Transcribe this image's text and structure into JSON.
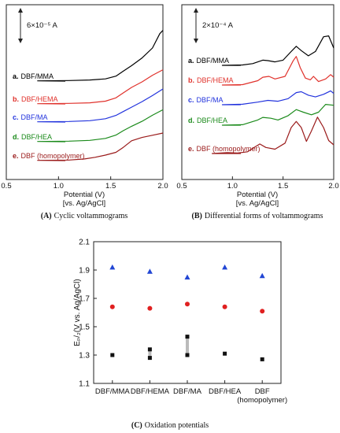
{
  "chart_data": [
    {
      "panel": "A",
      "type": "line",
      "caption_letter": "(A)",
      "caption_text": "Cyclic voltammograms",
      "scale_bar": "6×10⁻⁵ A",
      "xlabel": "Potential (V)",
      "xlabel_sub": "[vs. Ag/AgCl]",
      "xlim": [
        0.5,
        2.0
      ],
      "xticks": [
        "0.5",
        "1.0",
        "1.5",
        "2.0"
      ],
      "series": [
        {
          "letter": "a.",
          "name": "DBF/MMA",
          "color": "#000000",
          "x": [
            0.5,
            0.8,
            1.1,
            1.3,
            1.45,
            1.55,
            1.62,
            1.7,
            1.8,
            1.9,
            1.97,
            2.0
          ],
          "y": [
            0,
            0.02,
            0.05,
            0.1,
            0.2,
            0.45,
            0.9,
            1.4,
            2.1,
            3.0,
            4.3,
            4.6
          ]
        },
        {
          "letter": "b.",
          "name": "DBF/HEMA",
          "color": "#e0312b",
          "x": [
            0.5,
            0.8,
            1.1,
            1.3,
            1.45,
            1.55,
            1.62,
            1.7,
            1.8,
            1.9,
            2.0
          ],
          "y": [
            0,
            0.02,
            0.05,
            0.1,
            0.25,
            0.55,
            1.0,
            1.5,
            2.0,
            2.6,
            3.1
          ]
        },
        {
          "letter": "c.",
          "name": "DBF/MA",
          "color": "#2233dd",
          "x": [
            0.5,
            0.8,
            1.1,
            1.3,
            1.45,
            1.55,
            1.62,
            1.7,
            1.8,
            1.9,
            2.0
          ],
          "y": [
            0,
            0.02,
            0.05,
            0.12,
            0.3,
            0.6,
            0.95,
            1.35,
            1.85,
            2.4,
            3.0
          ]
        },
        {
          "letter": "d.",
          "name": "DBF/HEA",
          "color": "#1a8a1a",
          "x": [
            0.5,
            0.8,
            1.1,
            1.3,
            1.45,
            1.55,
            1.62,
            1.7,
            1.8,
            1.9,
            2.0
          ],
          "y": [
            0,
            0.02,
            0.05,
            0.12,
            0.3,
            0.6,
            1.0,
            1.4,
            1.85,
            2.4,
            2.9
          ]
        },
        {
          "letter": "e.",
          "name": "DBF (homopolymer)",
          "color": "#9a1a1a",
          "x": [
            0.5,
            0.8,
            1.1,
            1.25,
            1.35,
            1.45,
            1.55,
            1.62,
            1.7,
            1.8,
            1.9,
            2.0
          ],
          "y": [
            0,
            0.02,
            0.05,
            0.15,
            0.3,
            0.5,
            0.75,
            1.2,
            1.8,
            2.1,
            2.3,
            2.5
          ]
        }
      ]
    },
    {
      "panel": "B",
      "type": "line",
      "caption_letter": "(B)",
      "caption_text": "Differential forms of voltammograms",
      "scale_bar": "2×10⁻⁴ A",
      "xlabel": "Potential (V)",
      "xlabel_sub": "[vs. Ag/AgCl]",
      "xlim": [
        0.5,
        2.0
      ],
      "xticks": [
        "0.5",
        "1.0",
        "1.5",
        "2.0"
      ],
      "series": [
        {
          "letter": "a.",
          "name": "DBF/MMA",
          "color": "#000000",
          "x": [
            0.5,
            0.9,
            1.1,
            1.2,
            1.3,
            1.35,
            1.42,
            1.5,
            1.58,
            1.63,
            1.68,
            1.75,
            1.82,
            1.9,
            1.95,
            2.0
          ],
          "y": [
            0,
            0,
            0.05,
            0.2,
            0.6,
            0.55,
            0.4,
            0.6,
            1.6,
            2.2,
            1.7,
            1.1,
            1.6,
            3.3,
            3.4,
            2.0
          ]
        },
        {
          "letter": "b.",
          "name": "DBF/HEMA",
          "color": "#e0312b",
          "x": [
            0.5,
            0.9,
            1.1,
            1.25,
            1.3,
            1.36,
            1.42,
            1.52,
            1.6,
            1.63,
            1.67,
            1.72,
            1.77,
            1.8,
            1.85,
            1.92,
            1.97,
            2.0
          ],
          "y": [
            0,
            0,
            0.05,
            0.5,
            0.9,
            1.0,
            0.7,
            1.0,
            2.8,
            3.3,
            2.0,
            0.8,
            0.6,
            1.0,
            0.4,
            0.7,
            1.2,
            0.9
          ]
        },
        {
          "letter": "c.",
          "name": "DBF/MA",
          "color": "#2233dd",
          "x": [
            0.5,
            0.9,
            1.1,
            1.25,
            1.35,
            1.45,
            1.55,
            1.63,
            1.68,
            1.75,
            1.82,
            1.9,
            1.97,
            2.0
          ],
          "y": [
            0,
            0,
            0.05,
            0.3,
            0.5,
            0.4,
            0.7,
            1.4,
            1.5,
            1.1,
            0.9,
            1.2,
            1.6,
            1.3
          ]
        },
        {
          "letter": "d.",
          "name": "DBF/HEA",
          "color": "#1a8a1a",
          "x": [
            0.5,
            0.9,
            1.1,
            1.25,
            1.3,
            1.38,
            1.45,
            1.55,
            1.63,
            1.7,
            1.78,
            1.85,
            1.92,
            2.0
          ],
          "y": [
            0,
            0,
            0.05,
            0.6,
            0.9,
            0.8,
            0.6,
            1.1,
            1.8,
            1.5,
            1.2,
            1.5,
            2.4,
            2.3
          ]
        },
        {
          "letter": "e.",
          "name": "DBF (homopolymer)",
          "color": "#9a1a1a",
          "x": [
            0.5,
            0.8,
            0.95,
            1.05,
            1.15,
            1.2,
            1.27,
            1.33,
            1.42,
            1.52,
            1.58,
            1.63,
            1.68,
            1.73,
            1.78,
            1.84,
            1.9,
            1.95,
            2.0
          ],
          "y": [
            0,
            0,
            0.1,
            0.05,
            0.2,
            0.6,
            1.1,
            0.7,
            0.5,
            1.2,
            3.0,
            3.7,
            3.0,
            1.4,
            2.6,
            4.2,
            3.0,
            1.5,
            1.0
          ]
        }
      ]
    },
    {
      "panel": "C",
      "type": "scatter",
      "caption_letter": "(C)",
      "caption_text": "Oxidation potentials",
      "ylabel": "Eₚ/₂(V vs. Ag/AgCl)",
      "ylim": [
        1.1,
        2.1
      ],
      "yticks": [
        "1.1",
        "1.3",
        "1.5",
        "1.7",
        "1.9",
        "2.1"
      ],
      "categories": [
        "DBF/MMA",
        "DBF/HEMA",
        "DBF/MA",
        "DBF/HEA",
        "DBF"
      ],
      "category_sub": [
        "",
        "",
        "",
        "",
        "(homopolymer)"
      ],
      "series": [
        {
          "marker": "triangle",
          "color": "#2246d4",
          "values": [
            1.92,
            1.89,
            1.85,
            1.92,
            1.86
          ]
        },
        {
          "marker": "circle",
          "color": "#e02020",
          "values": [
            1.64,
            1.63,
            1.66,
            1.64,
            1.61
          ]
        },
        {
          "marker": "square",
          "color": "#111111",
          "values": [
            1.3,
            1.34,
            1.43,
            1.31,
            1.27
          ]
        },
        {
          "marker": "square",
          "color": "#111111",
          "values": [
            null,
            1.28,
            1.3,
            null,
            null
          ]
        }
      ],
      "ranges": [
        {
          "category": 1,
          "low": 1.28,
          "high": 1.34,
          "color": "#bbbbbb"
        },
        {
          "category": 2,
          "low": 1.3,
          "high": 1.43,
          "color": "#bbbbbb"
        }
      ]
    }
  ]
}
